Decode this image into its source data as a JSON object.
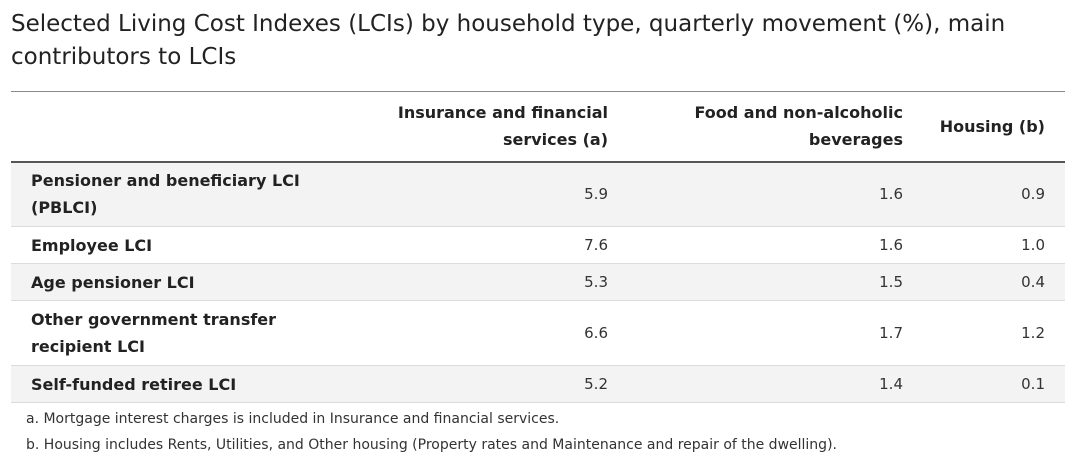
{
  "title": "Selected Living Cost Indexes (LCIs) by household type, quarterly movement (%), main contributors to LCIs",
  "table": {
    "headers": [
      "Insurance and financial services (a)",
      "Food and non-alcoholic beverages",
      "Housing (b)"
    ],
    "rows": [
      {
        "label": "Pensioner and beneficiary LCI (PBLCI)",
        "values": [
          "5.9",
          "1.6",
          "0.9"
        ]
      },
      {
        "label": "Employee LCI",
        "values": [
          "7.6",
          "1.6",
          "1.0"
        ]
      },
      {
        "label": "Age pensioner LCI",
        "values": [
          "5.3",
          "1.5",
          "0.4"
        ]
      },
      {
        "label": "Other government transfer recipient LCI",
        "values": [
          "6.6",
          "1.7",
          "1.2"
        ]
      },
      {
        "label": "Self-funded retiree LCI",
        "values": [
          "5.2",
          "1.4",
          "0.1"
        ]
      }
    ]
  },
  "footnotes": [
    "a. Mortgage interest charges is included in Insurance and financial services.",
    "b. Housing includes Rents, Utilities, and Other housing (Property rates and Maintenance and repair of the dwelling)."
  ],
  "colors": {
    "text": "#222222",
    "alt_row": "#f3f3f3",
    "rule": "#555555"
  }
}
